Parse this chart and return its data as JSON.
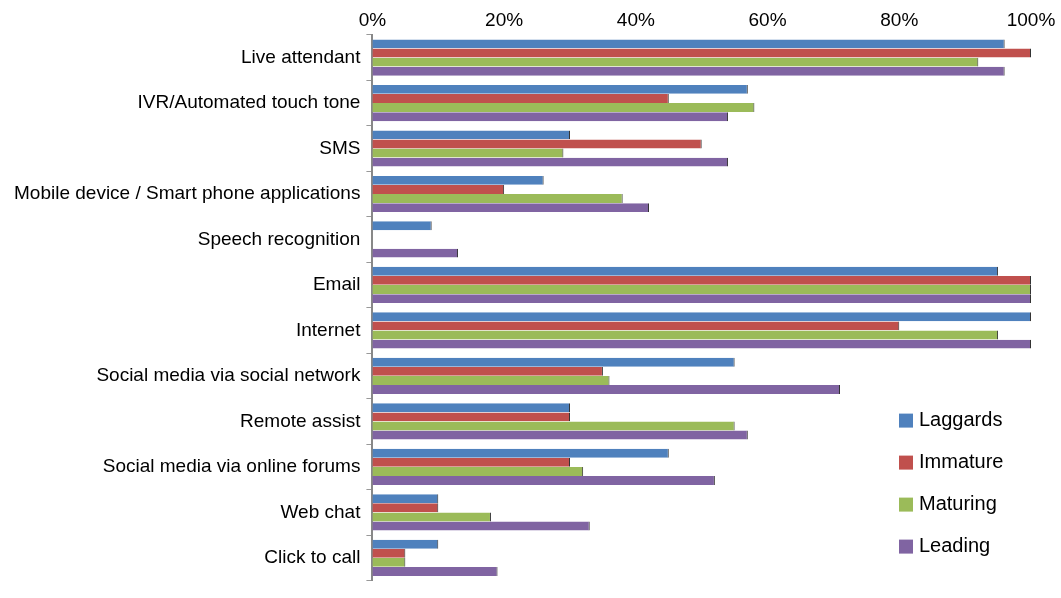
{
  "chart_data": {
    "type": "bar",
    "orientation": "horizontal",
    "categories": [
      "Live attendant",
      "IVR/Automated touch tone",
      "SMS",
      "Mobile device / Smart phone applications",
      "Speech recognition",
      "Email",
      "Internet",
      "Social media via social network",
      "Remote assist",
      "Social media via online forums",
      "Web chat",
      "Click to call"
    ],
    "series": [
      {
        "name": "Laggards",
        "color": "#4f81bd",
        "values": [
          96,
          57,
          30,
          26,
          9,
          95,
          100,
          55,
          30,
          45,
          10,
          10
        ]
      },
      {
        "name": "Immature",
        "color": "#c0504d",
        "values": [
          100,
          45,
          50,
          20,
          0,
          100,
          80,
          35,
          30,
          30,
          10,
          5
        ]
      },
      {
        "name": "Maturing",
        "color": "#9bbb59",
        "values": [
          92,
          58,
          29,
          38,
          0,
          100,
          95,
          36,
          55,
          32,
          18,
          5
        ]
      },
      {
        "name": "Leading",
        "color": "#8064a2",
        "values": [
          96,
          54,
          54,
          42,
          13,
          100,
          100,
          71,
          57,
          52,
          33,
          19
        ]
      }
    ],
    "xlim": [
      0,
      100
    ],
    "xticks": [
      {
        "value": 0,
        "label": "0%"
      },
      {
        "value": 20,
        "label": "20%"
      },
      {
        "value": 40,
        "label": "40%"
      },
      {
        "value": 60,
        "label": "60%"
      },
      {
        "value": 80,
        "label": "80%"
      },
      {
        "value": 100,
        "label": "100%"
      }
    ],
    "grid": false,
    "legend": "bottom right"
  }
}
